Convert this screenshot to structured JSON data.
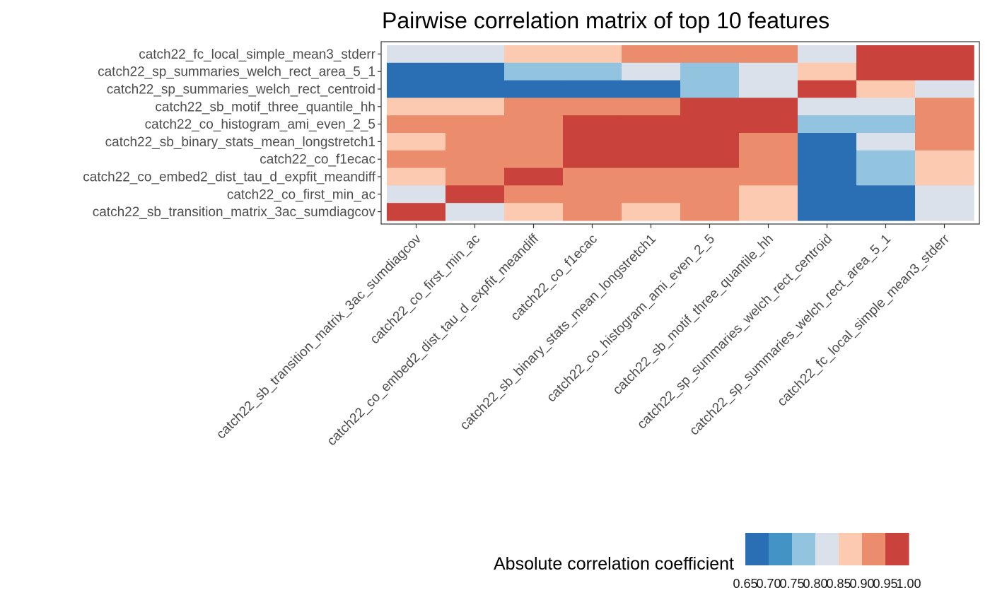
{
  "chart_data": {
    "type": "heatmap",
    "title": "Pairwise correlation matrix of top 10 features",
    "x_categories": [
      "catch22_sb_transition_matrix_3ac_sumdiagcov",
      "catch22_co_first_min_ac",
      "catch22_co_embed2_dist_tau_d_expfit_meandiff",
      "catch22_co_f1ecac",
      "catch22_sb_binary_stats_mean_longstretch1",
      "catch22_co_histogram_ami_even_2_5",
      "catch22_sb_motif_three_quantile_hh",
      "catch22_sp_summaries_welch_rect_centroid",
      "catch22_sp_summaries_welch_rect_area_5_1",
      "catch22_fc_local_simple_mean3_stderr"
    ],
    "y_categories_top_to_bottom": [
      "catch22_fc_local_simple_mean3_stderr",
      "catch22_sp_summaries_welch_rect_area_5_1",
      "catch22_sp_summaries_welch_rect_centroid",
      "catch22_sb_motif_three_quantile_hh",
      "catch22_co_histogram_ami_even_2_5",
      "catch22_sb_binary_stats_mean_longstretch1",
      "catch22_co_f1ecac",
      "catch22_co_embed2_dist_tau_d_expfit_meandiff",
      "catch22_co_first_min_ac",
      "catch22_sb_transition_matrix_3ac_sumdiagcov"
    ],
    "values_rows_top_to_bottom": [
      [
        0.825,
        0.825,
        0.875,
        0.875,
        0.925,
        0.925,
        0.925,
        0.825,
        0.975,
        0.975
      ],
      [
        0.675,
        0.675,
        0.775,
        0.775,
        0.825,
        0.775,
        0.825,
        0.875,
        0.975,
        0.975
      ],
      [
        0.625,
        0.625,
        0.675,
        0.675,
        0.675,
        0.775,
        0.825,
        0.975,
        0.875,
        0.825
      ],
      [
        0.875,
        0.875,
        0.925,
        0.925,
        0.925,
        0.975,
        0.975,
        0.825,
        0.825,
        0.925
      ],
      [
        0.925,
        0.925,
        0.925,
        0.975,
        0.975,
        0.975,
        0.975,
        0.775,
        0.775,
        0.925
      ],
      [
        0.875,
        0.925,
        0.925,
        0.975,
        0.975,
        0.975,
        0.925,
        0.675,
        0.825,
        0.925
      ],
      [
        0.925,
        0.925,
        0.925,
        0.975,
        0.975,
        0.975,
        0.925,
        0.675,
        0.775,
        0.875
      ],
      [
        0.875,
        0.925,
        0.975,
        0.925,
        0.925,
        0.925,
        0.925,
        0.675,
        0.775,
        0.875
      ],
      [
        0.825,
        0.975,
        0.925,
        0.925,
        0.925,
        0.925,
        0.875,
        0.625,
        0.675,
        0.825
      ],
      [
        0.975,
        0.825,
        0.875,
        0.925,
        0.875,
        0.925,
        0.875,
        0.625,
        0.675,
        0.825
      ]
    ],
    "legend": {
      "title": "Absolute correlation coefficient",
      "position": "bottom",
      "breaks": [
        "0.65",
        "0.70",
        "0.75",
        "0.80",
        "0.85",
        "0.90",
        "0.95",
        "1.00"
      ],
      "bin_colors": [
        "#2a6fb3",
        "#4393c6",
        "#93c4df",
        "#dae1ea",
        "#fccab0",
        "#eb8c6d",
        "#c9433c"
      ]
    },
    "scale_range": [
      0.6,
      1.0
    ],
    "grid": false
  }
}
